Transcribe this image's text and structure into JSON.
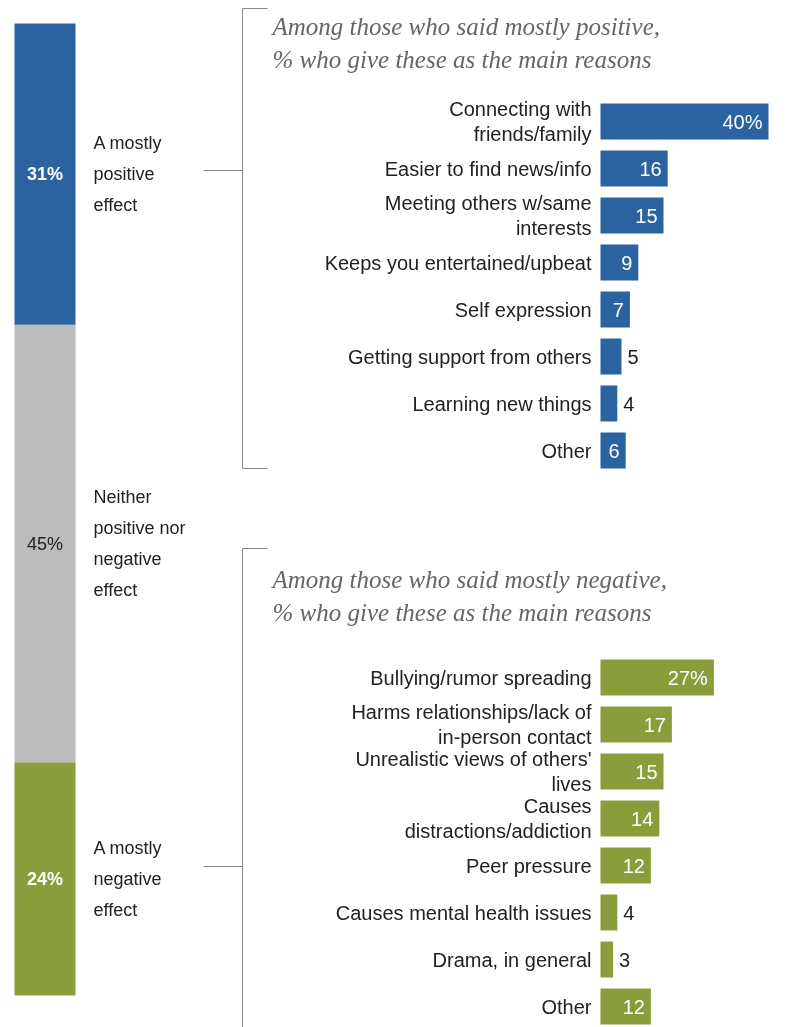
{
  "chart_data": [
    {
      "type": "bar",
      "stacked": true,
      "categories": [
        null
      ],
      "series": [
        {
          "name": "A mostly negative effect",
          "color": "#8a9d3b",
          "values": [
            24
          ],
          "value_labels": [
            "24%"
          ]
        },
        {
          "name": "Neither positive nor negative effect",
          "color": "#bcbcbc",
          "values": [
            45
          ],
          "value_labels": [
            "45%"
          ]
        },
        {
          "name": "A mostly positive effect",
          "color": "#2b63a0",
          "values": [
            31
          ],
          "value_labels": [
            "31%"
          ]
        }
      ]
    },
    {
      "type": "bar",
      "orientation": "horizontal",
      "title": "Among those who said mostly positive, % who give these as the main reasons",
      "categories": [
        "Connecting with friends/family",
        "Easier to find news/info",
        "Meeting others w/same interests",
        "Keeps you entertained/upbeat",
        "Self expression",
        "Getting support from others",
        "Learning new things",
        "Other"
      ],
      "series": [
        {
          "color": "#2b63a0",
          "values": [
            40,
            16,
            15,
            9,
            7,
            5,
            4,
            6
          ],
          "value_labels": [
            "40%",
            "16",
            "15",
            "9",
            "7",
            "5",
            "4",
            "6"
          ]
        }
      ]
    },
    {
      "type": "bar",
      "orientation": "horizontal",
      "title": "Among those who said mostly negative, % who give these as the main reasons",
      "categories": [
        "Bullying/rumor spreading",
        "Harms relationships/lack of in-person contact",
        "Unrealistic views of others' lives",
        "Causes distractions/addiction",
        "Peer pressure",
        "Causes mental health issues",
        "Drama, in general",
        "Other"
      ],
      "series": [
        {
          "color": "#8a9d3b",
          "values": [
            27,
            17,
            15,
            14,
            12,
            4,
            3,
            12
          ],
          "value_labels": [
            "27%",
            "17",
            "15",
            "14",
            "12",
            "4",
            "3",
            "12"
          ]
        }
      ]
    }
  ]
}
